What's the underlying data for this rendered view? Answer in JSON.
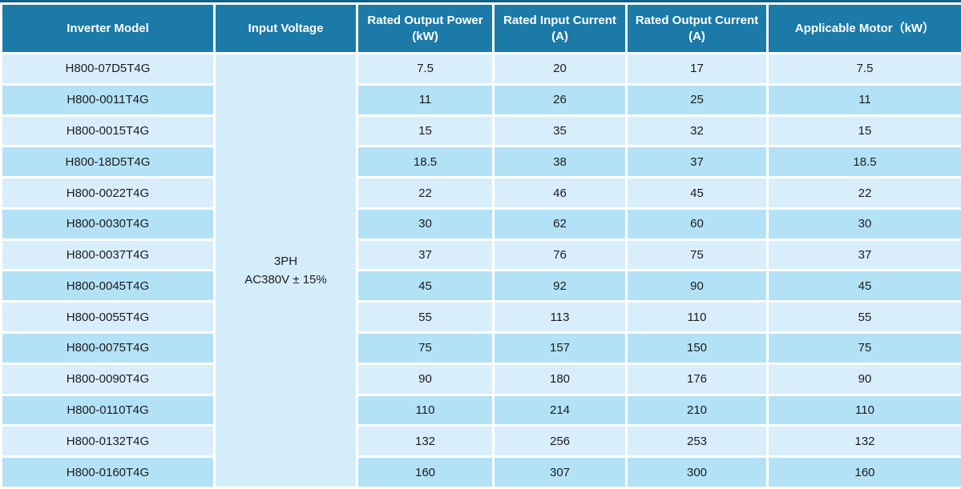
{
  "colors": {
    "header_bg": "#1b7aa8",
    "header_text": "#ffffff",
    "row_light": "#d9eefb",
    "row_dark": "#b3e2f6",
    "voltage_cell_bg": "#d4edfb",
    "cell_text": "#1c1c1c",
    "grid_gap": "#ffffff",
    "top_border": "#0f5f8c"
  },
  "table": {
    "headers": [
      {
        "id": "model",
        "label": "Inverter Model"
      },
      {
        "id": "voltage",
        "label": "Input Voltage"
      },
      {
        "id": "output_power",
        "label": "Rated Output Power (kW)"
      },
      {
        "id": "input_current",
        "label": "Rated Input Current (A)"
      },
      {
        "id": "output_current",
        "label": "Rated Output Current (A)"
      },
      {
        "id": "motor",
        "label": "Applicable Motor（kW）"
      }
    ],
    "input_voltage": {
      "line1": "3PH",
      "line2": "AC380V ± 15%"
    },
    "rows": [
      {
        "model": "H800-07D5T4G",
        "output_power": "7.5",
        "input_current": "20",
        "output_current": "17",
        "motor": "7.5"
      },
      {
        "model": "H800-0011T4G",
        "output_power": "11",
        "input_current": "26",
        "output_current": "25",
        "motor": "11"
      },
      {
        "model": "H800-0015T4G",
        "output_power": "15",
        "input_current": "35",
        "output_current": "32",
        "motor": "15"
      },
      {
        "model": "H800-18D5T4G",
        "output_power": "18.5",
        "input_current": "38",
        "output_current": "37",
        "motor": "18.5"
      },
      {
        "model": "H800-0022T4G",
        "output_power": "22",
        "input_current": "46",
        "output_current": "45",
        "motor": "22"
      },
      {
        "model": "H800-0030T4G",
        "output_power": "30",
        "input_current": "62",
        "output_current": "60",
        "motor": "30"
      },
      {
        "model": "H800-0037T4G",
        "output_power": "37",
        "input_current": "76",
        "output_current": "75",
        "motor": "37"
      },
      {
        "model": "H800-0045T4G",
        "output_power": "45",
        "input_current": "92",
        "output_current": "90",
        "motor": "45"
      },
      {
        "model": "H800-0055T4G",
        "output_power": "55",
        "input_current": "113",
        "output_current": "110",
        "motor": "55"
      },
      {
        "model": "H800-0075T4G",
        "output_power": "75",
        "input_current": "157",
        "output_current": "150",
        "motor": "75"
      },
      {
        "model": "H800-0090T4G",
        "output_power": "90",
        "input_current": "180",
        "output_current": "176",
        "motor": "90"
      },
      {
        "model": "H800-0110T4G",
        "output_power": "110",
        "input_current": "214",
        "output_current": "210",
        "motor": "110"
      },
      {
        "model": "H800-0132T4G",
        "output_power": "132",
        "input_current": "256",
        "output_current": "253",
        "motor": "132"
      },
      {
        "model": "H800-0160T4G",
        "output_power": "160",
        "input_current": "307",
        "output_current": "300",
        "motor": "160"
      }
    ]
  }
}
